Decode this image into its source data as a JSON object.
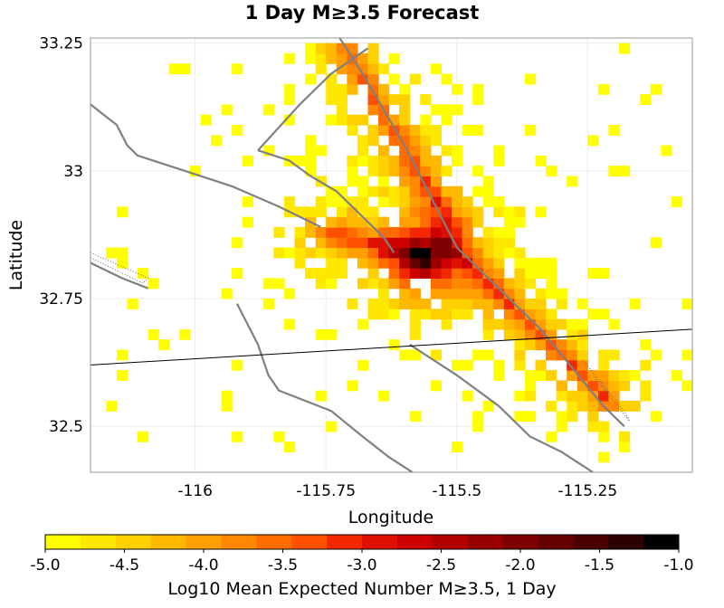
{
  "chart_data": {
    "type": "heatmap",
    "title": "1 Day M≥3.5 Forecast",
    "xlabel": "Longitude",
    "ylabel": "Latitude",
    "xlim": [
      -116.2,
      -115.05
    ],
    "ylim": [
      32.41,
      33.26
    ],
    "cell_size_deg": 0.02,
    "x_ticks": [
      -116,
      -115.75,
      -115.5,
      -115.25
    ],
    "x_tick_labels": [
      "-116",
      "-115.75",
      "-115.5",
      "-115.25"
    ],
    "y_ticks": [
      32.5,
      32.75,
      33,
      33.25
    ],
    "y_tick_labels": [
      "32.5",
      "32.75",
      "33",
      "33.25"
    ],
    "grid": true,
    "colorbar": {
      "label": "Log10 Mean Expected Number M≥3.5, 1 Day",
      "range": [
        -5.0,
        -1.0
      ],
      "ticks": [
        -5.0,
        -4.5,
        -4.0,
        -3.5,
        -3.0,
        -2.5,
        -2.0,
        -1.5,
        -1.0
      ],
      "tick_labels": [
        "-5.0",
        "-4.5",
        "-4.0",
        "-3.5",
        "-3.0",
        "-2.5",
        "-2.0",
        "-1.5",
        "-1.0"
      ],
      "colors": [
        "#ffff00",
        "#ffe800",
        "#ffd000",
        "#ffb800",
        "#ffa000",
        "#ff8800",
        "#ff6c00",
        "#ff5000",
        "#f42800",
        "#e01000",
        "#cc0000",
        "#b20000",
        "#980000",
        "#7e0000",
        "#640000",
        "#4a0000",
        "#2c0000",
        "#000000"
      ]
    },
    "hotspot": {
      "lon": -115.57,
      "lat": 32.82,
      "value": -1.0
    },
    "seed": 20241,
    "faults": [
      {
        "type": "gray",
        "points": [
          [
            -115.73,
            33.27
          ],
          [
            -115.68,
            33.19
          ],
          [
            -115.64,
            33.12
          ],
          [
            -115.6,
            33.05
          ],
          [
            -115.57,
            32.99
          ],
          [
            -115.54,
            32.93
          ],
          [
            -115.52,
            32.89
          ]
        ]
      },
      {
        "type": "gray",
        "points": [
          [
            -115.88,
            33.04
          ],
          [
            -115.8,
            33.13
          ],
          [
            -115.74,
            33.19
          ],
          [
            -115.67,
            33.24
          ]
        ]
      },
      {
        "type": "gray",
        "points": [
          [
            -116.2,
            33.13
          ],
          [
            -116.15,
            33.09
          ],
          [
            -116.13,
            33.05
          ],
          [
            -116.11,
            33.03
          ],
          [
            -116.02,
            33.0
          ],
          [
            -115.93,
            32.97
          ],
          [
            -115.84,
            32.93
          ],
          [
            -115.76,
            32.89
          ]
        ]
      },
      {
        "type": "gray",
        "points": [
          [
            -115.88,
            33.04
          ],
          [
            -115.82,
            33.02
          ],
          [
            -115.78,
            32.99
          ],
          [
            -115.73,
            32.96
          ],
          [
            -115.69,
            32.92
          ],
          [
            -115.64,
            32.87
          ],
          [
            -115.62,
            32.84
          ]
        ]
      },
      {
        "type": "gray",
        "points": [
          [
            -115.52,
            32.89
          ],
          [
            -115.5,
            32.85
          ],
          [
            -115.46,
            32.81
          ],
          [
            -115.42,
            32.77
          ],
          [
            -115.38,
            32.73
          ],
          [
            -115.34,
            32.69
          ],
          [
            -115.3,
            32.64
          ],
          [
            -115.26,
            32.59
          ],
          [
            -115.22,
            32.54
          ],
          [
            -115.18,
            32.5
          ]
        ]
      },
      {
        "type": "gray",
        "points": [
          [
            -115.92,
            32.74
          ],
          [
            -115.88,
            32.66
          ],
          [
            -115.86,
            32.6
          ],
          [
            -115.84,
            32.57
          ],
          [
            -115.74,
            32.53
          ],
          [
            -115.68,
            32.48
          ],
          [
            -115.63,
            32.44
          ],
          [
            -115.57,
            32.4
          ]
        ]
      },
      {
        "type": "gray",
        "points": [
          [
            -115.59,
            32.66
          ],
          [
            -115.5,
            32.6
          ],
          [
            -115.42,
            32.54
          ],
          [
            -115.36,
            32.48
          ],
          [
            -115.3,
            32.45
          ],
          [
            -115.24,
            32.41
          ]
        ]
      },
      {
        "type": "gray",
        "points": [
          [
            -116.2,
            32.82
          ],
          [
            -116.14,
            32.79
          ],
          [
            -116.09,
            32.77
          ]
        ]
      },
      {
        "type": "black",
        "points": [
          [
            -116.2,
            32.62
          ],
          [
            -115.05,
            32.69
          ]
        ]
      },
      {
        "type": "dotted",
        "points": [
          [
            -116.2,
            32.84
          ],
          [
            -116.09,
            32.79
          ],
          [
            -116.1,
            32.78
          ],
          [
            -116.2,
            32.83
          ]
        ]
      },
      {
        "type": "dotted",
        "points": [
          [
            -115.26,
            32.63
          ],
          [
            -115.18,
            32.53
          ],
          [
            -115.17,
            32.51
          ],
          [
            -115.24,
            32.6
          ]
        ]
      }
    ]
  }
}
